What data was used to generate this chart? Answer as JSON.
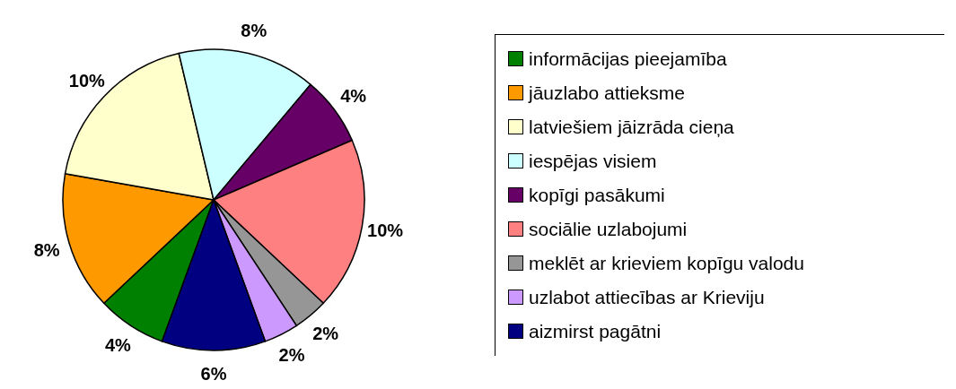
{
  "chart_data": {
    "type": "pie",
    "categories": [
      "informācijas pieejamība",
      "jāuzlabo attieksme",
      "latviešiem jāizrāda cieņa",
      "iespējas visiem",
      "kopīgi pasākumi",
      "sociālie uzlabojumi",
      "meklēt ar krieviem kopīgu valodu",
      "uzlabot attiecības ar Krieviju",
      "aizmirst pagātni"
    ],
    "values": [
      4,
      8,
      10,
      8,
      4,
      10,
      2,
      2,
      6
    ],
    "value_labels": [
      "4%",
      "8%",
      "10%",
      "8%",
      "4%",
      "10%",
      "2%",
      "2%",
      "6%"
    ],
    "colors": [
      "#008000",
      "#ff9900",
      "#ffffcc",
      "#ccffff",
      "#660066",
      "#ff8080",
      "#969696",
      "#cc99ff",
      "#000080"
    ],
    "legend": "right"
  }
}
